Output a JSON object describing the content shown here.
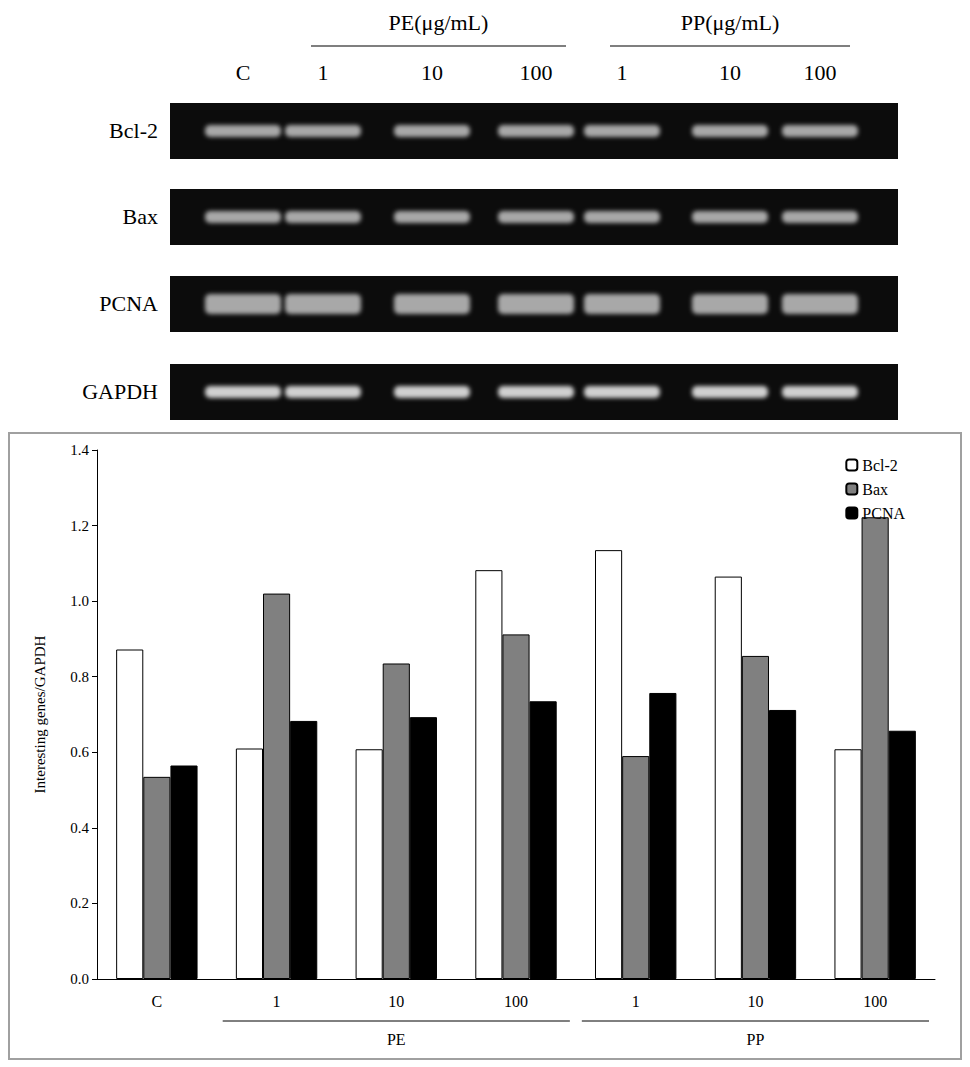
{
  "gel": {
    "lanes": [
      "C",
      "1",
      "10",
      "100",
      "1",
      "10",
      "100"
    ],
    "header_groups": [
      {
        "label": "PE(μg/mL)",
        "first_lane": 1,
        "last_lane": 3
      },
      {
        "label": "PP(μg/mL)",
        "first_lane": 4,
        "last_lane": 6
      }
    ],
    "rows": [
      "Bcl-2",
      "Bax",
      "PCNA",
      "GAPDH"
    ]
  },
  "chart_data": {
    "type": "bar",
    "y_label": "Interesting genes/GAPDH",
    "categories": [
      "C",
      "1",
      "10",
      "100",
      "1",
      "10",
      "100"
    ],
    "groups": [
      {
        "label": "PE",
        "first": 1,
        "last": 3
      },
      {
        "label": "PP",
        "first": 4,
        "last": 6
      }
    ],
    "series": [
      {
        "name": "Bcl-2",
        "color": "#ffffff",
        "values": [
          0.872,
          0.61,
          0.608,
          1.082,
          1.135,
          1.065,
          0.608
        ]
      },
      {
        "name": "Bax",
        "color": "#808080",
        "values": [
          0.535,
          1.02,
          0.835,
          0.912,
          0.59,
          0.855,
          1.222
        ]
      },
      {
        "name": "PCNA",
        "color": "#000000",
        "values": [
          0.565,
          0.683,
          0.693,
          0.735,
          0.757,
          0.712,
          0.657
        ]
      }
    ],
    "ylim": [
      0,
      1.4
    ],
    "yticks": [
      {
        "value": 0,
        "label": "0.0"
      },
      {
        "value": 0.2,
        "label": "0.2"
      },
      {
        "value": 0.4,
        "label": "0.4"
      },
      {
        "value": 0.6,
        "label": "0.6"
      },
      {
        "value": 0.8,
        "label": "0.8"
      },
      {
        "value": 1.0,
        "label": "1.0"
      },
      {
        "value": 1.2,
        "label": "1.2"
      },
      {
        "value": 1.4,
        "label": "1.4"
      }
    ],
    "grid": false,
    "legend": "upper right"
  }
}
